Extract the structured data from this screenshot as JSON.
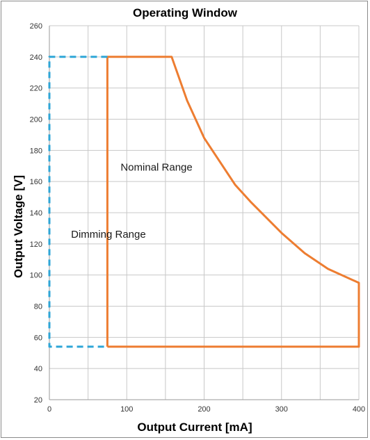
{
  "chart_data": {
    "type": "line",
    "title": "Operating Window",
    "xlabel": "Output Current [mA]",
    "ylabel": "Output Voltage [V]",
    "xlim": [
      0,
      400
    ],
    "ylim": [
      20,
      260
    ],
    "x_ticks": [
      "0",
      "100",
      "200",
      "300",
      "400"
    ],
    "y_ticks": [
      "20",
      "40",
      "60",
      "80",
      "100",
      "120",
      "140",
      "160",
      "180",
      "200",
      "220",
      "240",
      "260"
    ],
    "x_minor_gridlines": true,
    "grid": true,
    "legend": "none",
    "series": [
      {
        "color": "#ED7D31",
        "style": "solid",
        "points": [
          [
            75,
            54
          ],
          [
            75,
            240
          ],
          [
            158,
            240
          ],
          [
            178,
            212
          ],
          [
            200,
            188
          ],
          [
            240,
            158
          ],
          [
            260,
            147
          ],
          [
            300,
            127
          ],
          [
            330,
            114
          ],
          [
            360,
            104
          ],
          [
            400,
            95
          ],
          [
            400,
            54
          ],
          [
            75,
            54
          ]
        ]
      },
      {
        "color": "#2EA6D7",
        "style": "dashed",
        "points": [
          [
            75,
            240
          ],
          [
            0,
            240
          ],
          [
            0,
            54
          ],
          [
            75,
            54
          ]
        ]
      }
    ],
    "annotations": [
      {
        "text": "Nominal Range",
        "x": 92,
        "y": 167
      },
      {
        "text": "Dimming Range",
        "x": 28,
        "y": 124
      }
    ]
  }
}
